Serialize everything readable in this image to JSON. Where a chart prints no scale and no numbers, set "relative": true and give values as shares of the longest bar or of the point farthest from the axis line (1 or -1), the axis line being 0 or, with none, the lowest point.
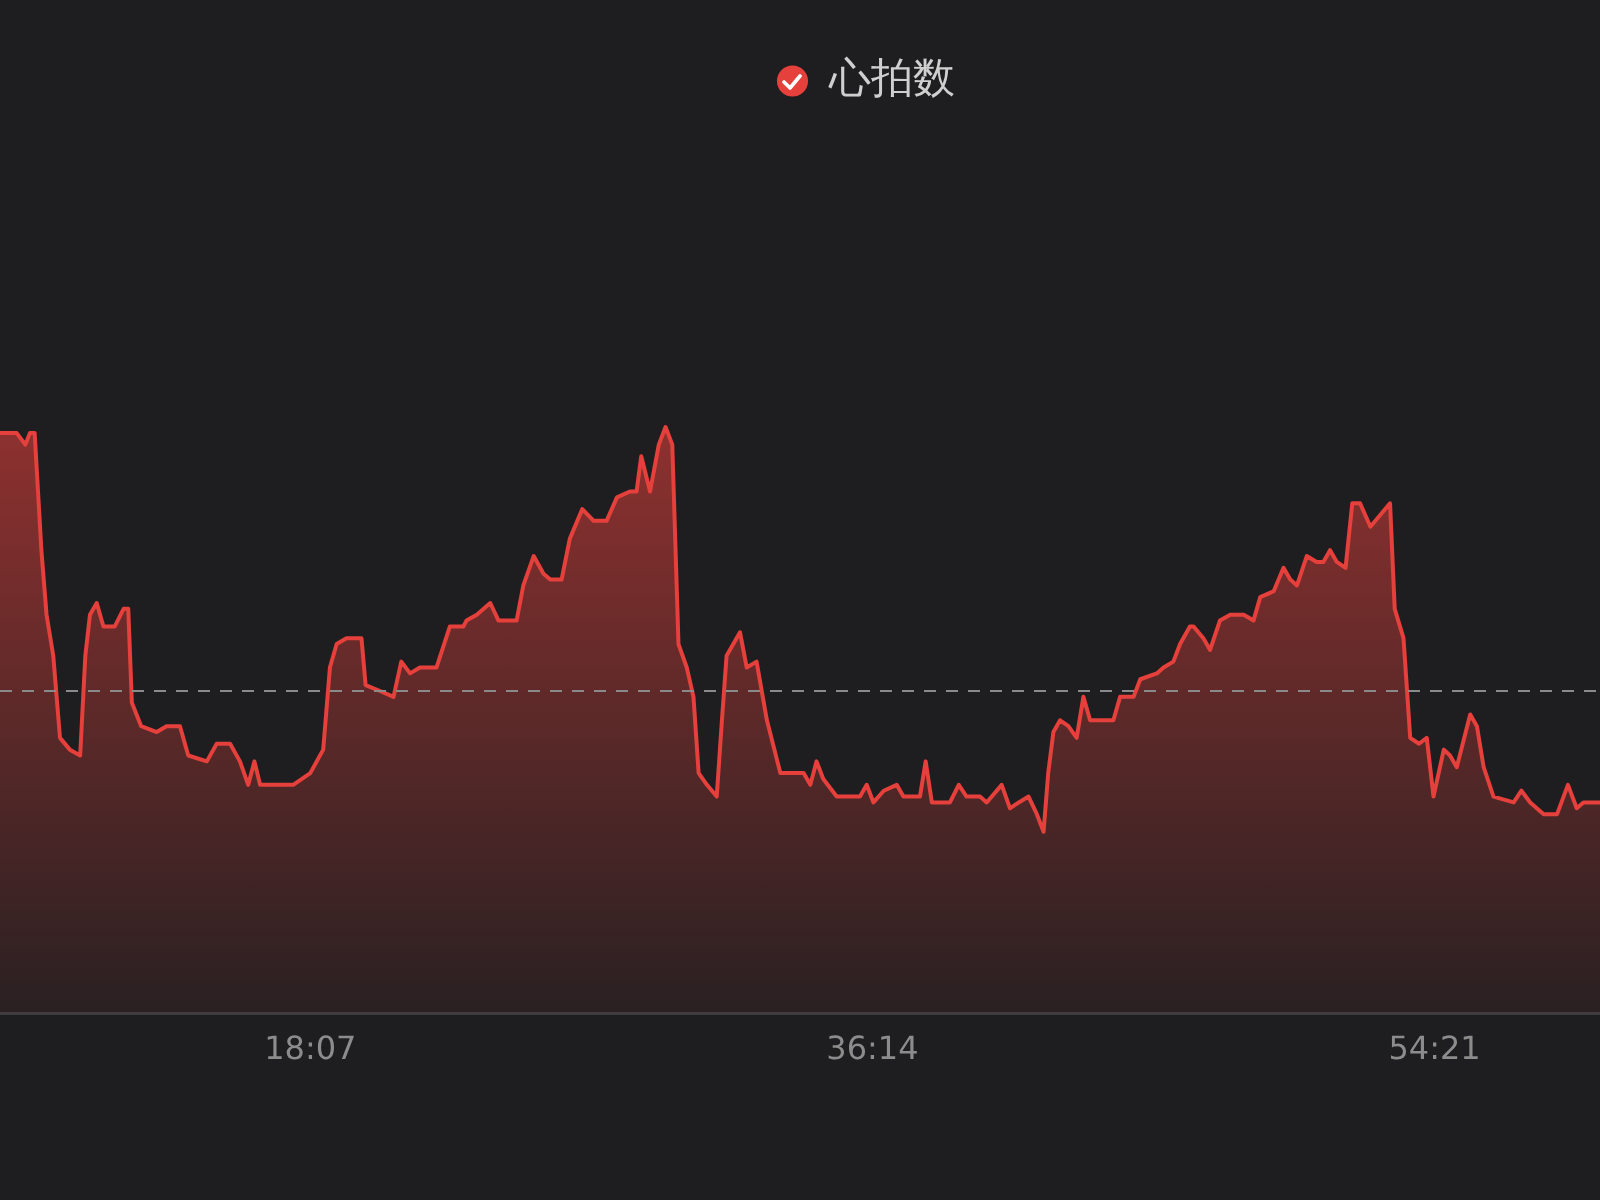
{
  "chart_data": {
    "type": "area",
    "relative": true,
    "x": [
      487,
      519,
      536,
      545,
      554,
      567,
      577,
      590,
      603,
      622,
      642,
      652,
      661,
      674,
      687,
      709,
      726,
      735,
      742,
      760,
      790,
      809,
      835,
      851,
      887,
      906,
      932,
      951,
      967,
      979,
      990,
      1016,
      1054,
      1087,
      1112,
      1125,
      1138,
      1157,
      1186,
      1194,
      1222,
      1248,
      1263,
      1280,
      1299,
      1331,
      1357,
      1383,
      1389,
      1409,
      1435,
      1451,
      1486,
      1499,
      1519,
      1538,
      1551,
      1573,
      1589,
      1613,
      1635,
      1660,
      1680,
      1705,
      1718,
      1727,
      1744,
      1761,
      1774,
      1787,
      1799,
      1815,
      1828,
      1838,
      1854,
      1873,
      1883,
      1892,
      1918,
      1931,
      1950,
      1970,
      1996,
      2041,
      2054,
      2066,
      2079,
      2105,
      2150,
      2163,
      2176,
      2196,
      2221,
      2234,
      2266,
      2277,
      2289,
      2324,
      2341,
      2356,
      2382,
      2395,
      2424,
      2440,
      2457,
      2476,
      2492,
      2505,
      2514,
      2524,
      2537,
      2553,
      2569,
      2582,
      2595,
      2640,
      2653,
      2679,
      2692,
      2724,
      2737,
      2756,
      2769,
      2788,
      2795,
      2814,
      2827,
      2846,
      2866,
      2892,
      2911,
      2924,
      2950,
      2969,
      2982,
      2995,
      3014,
      3033,
      3046,
      3059,
      3072,
      3089,
      3102,
      3117,
      3137,
      3156,
      3175,
      3184,
      3201,
      3214,
      3231,
      3246,
      3259,
      3279,
      3291,
      3304,
      3330,
      3343,
      3356,
      3375,
      3414,
      3429,
      3446,
      3472,
      3498,
      3519,
      3536,
      3549,
      3581
    ],
    "xlim": [
      487,
      3581
    ],
    "xticks": [
      {
        "value": 1087,
        "label": "18:07"
      },
      {
        "value": 2174,
        "label": "36:14"
      },
      {
        "value": 3261,
        "label": "54:21"
      }
    ],
    "series": [
      {
        "name": "心拍数",
        "color": "#e5403b",
        "values": [
          0.99,
          0.99,
          0.97,
          0.99,
          0.99,
          0.79,
          0.68,
          0.61,
          0.47,
          0.45,
          0.44,
          0.61,
          0.68,
          0.7,
          0.66,
          0.66,
          0.69,
          0.69,
          0.53,
          0.49,
          0.48,
          0.49,
          0.49,
          0.44,
          0.43,
          0.46,
          0.46,
          0.43,
          0.39,
          0.43,
          0.39,
          0.39,
          0.39,
          0.41,
          0.45,
          0.59,
          0.63,
          0.64,
          0.64,
          0.56,
          0.55,
          0.54,
          0.6,
          0.58,
          0.59,
          0.59,
          0.66,
          0.66,
          0.67,
          0.68,
          0.7,
          0.67,
          0.67,
          0.73,
          0.78,
          0.75,
          0.74,
          0.74,
          0.81,
          0.86,
          0.84,
          0.84,
          0.88,
          0.89,
          0.89,
          0.95,
          0.89,
          0.97,
          1.0,
          0.97,
          0.63,
          0.59,
          0.54,
          0.41,
          0.39,
          0.37,
          0.5,
          0.61,
          0.65,
          0.59,
          0.6,
          0.5,
          0.41,
          0.41,
          0.39,
          0.43,
          0.4,
          0.37,
          0.37,
          0.39,
          0.36,
          0.38,
          0.39,
          0.37,
          0.37,
          0.43,
          0.36,
          0.36,
          0.39,
          0.37,
          0.37,
          0.36,
          0.39,
          0.35,
          0.36,
          0.37,
          0.34,
          0.31,
          0.41,
          0.48,
          0.5,
          0.49,
          0.47,
          0.54,
          0.5,
          0.5,
          0.54,
          0.54,
          0.57,
          0.58,
          0.59,
          0.6,
          0.63,
          0.66,
          0.66,
          0.64,
          0.62,
          0.67,
          0.68,
          0.68,
          0.67,
          0.71,
          0.72,
          0.76,
          0.74,
          0.73,
          0.78,
          0.77,
          0.77,
          0.79,
          0.77,
          0.76,
          0.87,
          0.87,
          0.83,
          0.85,
          0.87,
          0.69,
          0.64,
          0.47,
          0.46,
          0.47,
          0.37,
          0.45,
          0.44,
          0.42,
          0.51,
          0.49,
          0.42,
          0.37,
          0.36,
          0.38,
          0.36,
          0.34,
          0.34,
          0.39,
          0.35,
          0.36,
          0.36
        ]
      }
    ],
    "ref_lines": [
      {
        "axis": "y",
        "value": 0.55,
        "color": "#8a8a8a",
        "line_style": "dashed"
      }
    ],
    "legend": "top",
    "grid": false,
    "marker": "none"
  }
}
